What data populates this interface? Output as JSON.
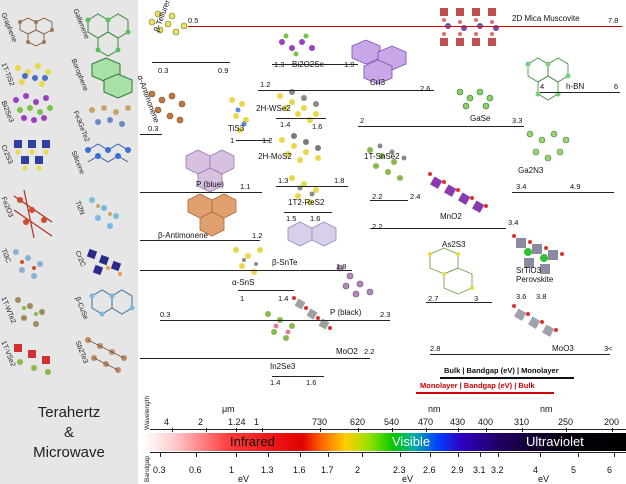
{
  "left_labels": [
    "Graphene",
    "Gallenene",
    "1T-TiS2",
    "Borophene",
    "Bi2Se3",
    "Fe3GeTe2",
    "Cr2S3",
    "Silicene",
    "Fe2O3",
    "Ti2N",
    "Ti3C",
    "Cr2C",
    "1T-WTe2",
    "β-CuSe",
    "1T-VSe2",
    "Sb2Te3"
  ],
  "left_title": [
    "Terahertz",
    "&",
    "Microwave"
  ],
  "materials": [
    "β-Tellurene",
    "Bi2O2Se",
    "CrI3",
    "2D Mica Muscovite",
    "α-Antimonene",
    "TiS3",
    "2H-WSe2",
    "2H-MoS2",
    "GaSe",
    "h-BN",
    "P (blue)",
    "1T-SnSe2",
    "Ga2N3",
    "1T2-ReS2",
    "β-Antimonene",
    "MnO2",
    "As2S3",
    "β-SnTe",
    "α-SnS",
    "SrTiO3 Perovskite",
    "P (black)",
    "MoO2",
    "In2Se3",
    "MoO3"
  ],
  "values": {
    "muscovite": [
      "0.5",
      "7.8"
    ],
    "tellurene": [
      "0.3",
      "0.9"
    ],
    "bi2o2se": [
      "1.3",
      "1.9"
    ],
    "cri3": [
      "1.2",
      "2.6"
    ],
    "hbn": [
      "4",
      "6"
    ],
    "antimonene_a": [
      "0.3"
    ],
    "wse2": [
      "1.4",
      "1.6"
    ],
    "tis3": [
      "1",
      "1.2"
    ],
    "gase": [
      "2",
      "3.3"
    ],
    "mos2": [
      "1.3",
      "1.8"
    ],
    "ga2n3": [
      "3.4",
      "4.9"
    ],
    "pblue": [
      "1.1"
    ],
    "snse2": [
      "2.2",
      "2.4"
    ],
    "res2": [
      "1.5",
      "1.6"
    ],
    "antimonene_b": [
      "1.2"
    ],
    "mno2": [
      "2.2",
      "3.4"
    ],
    "snte": [
      "1.8"
    ],
    "as2s3": [
      "2.7",
      "3"
    ],
    "srtio3": [
      "3.6",
      "3.8"
    ],
    "sns": [
      "1",
      "1.4"
    ],
    "pblack": [
      "0.3",
      "2.3"
    ],
    "moo2": [
      "2.2"
    ],
    "in2se3": [
      "1.4",
      "1.6"
    ],
    "moo3": [
      "2.8",
      "3<"
    ]
  },
  "legend": {
    "bulk": "Bulk | Bandgap (eV) | Monolayer",
    "mono": "Monolayer | Bandgap (eV) | Bulk"
  },
  "spectrum": {
    "regions": [
      "Infrared",
      "Visible",
      "Ultraviolet"
    ],
    "wavelength_label": "Wavelength",
    "bandgap_label": "Bandgap",
    "units_um": "μm",
    "units_nm": "nm",
    "units_nm2": "nm",
    "units_ev1": "eV",
    "units_ev2": "eV",
    "units_ev3": "eV",
    "wavelength_ticks": [
      "4",
      "2",
      "1.24",
      "1",
      "730",
      "620",
      "540",
      "470",
      "430",
      "400",
      "310",
      "250",
      "200"
    ],
    "bandgap_ticks": [
      "0.3",
      "0.6",
      "1",
      "1.3",
      "1.6",
      "1.7",
      "2",
      "2.3",
      "2.6",
      "2.9",
      "3.1",
      "3.2",
      "4",
      "5",
      "6"
    ]
  },
  "colors": {
    "left_bg": "#e6e6e6",
    "red_line": "#d00000",
    "black_line": "#222222"
  }
}
